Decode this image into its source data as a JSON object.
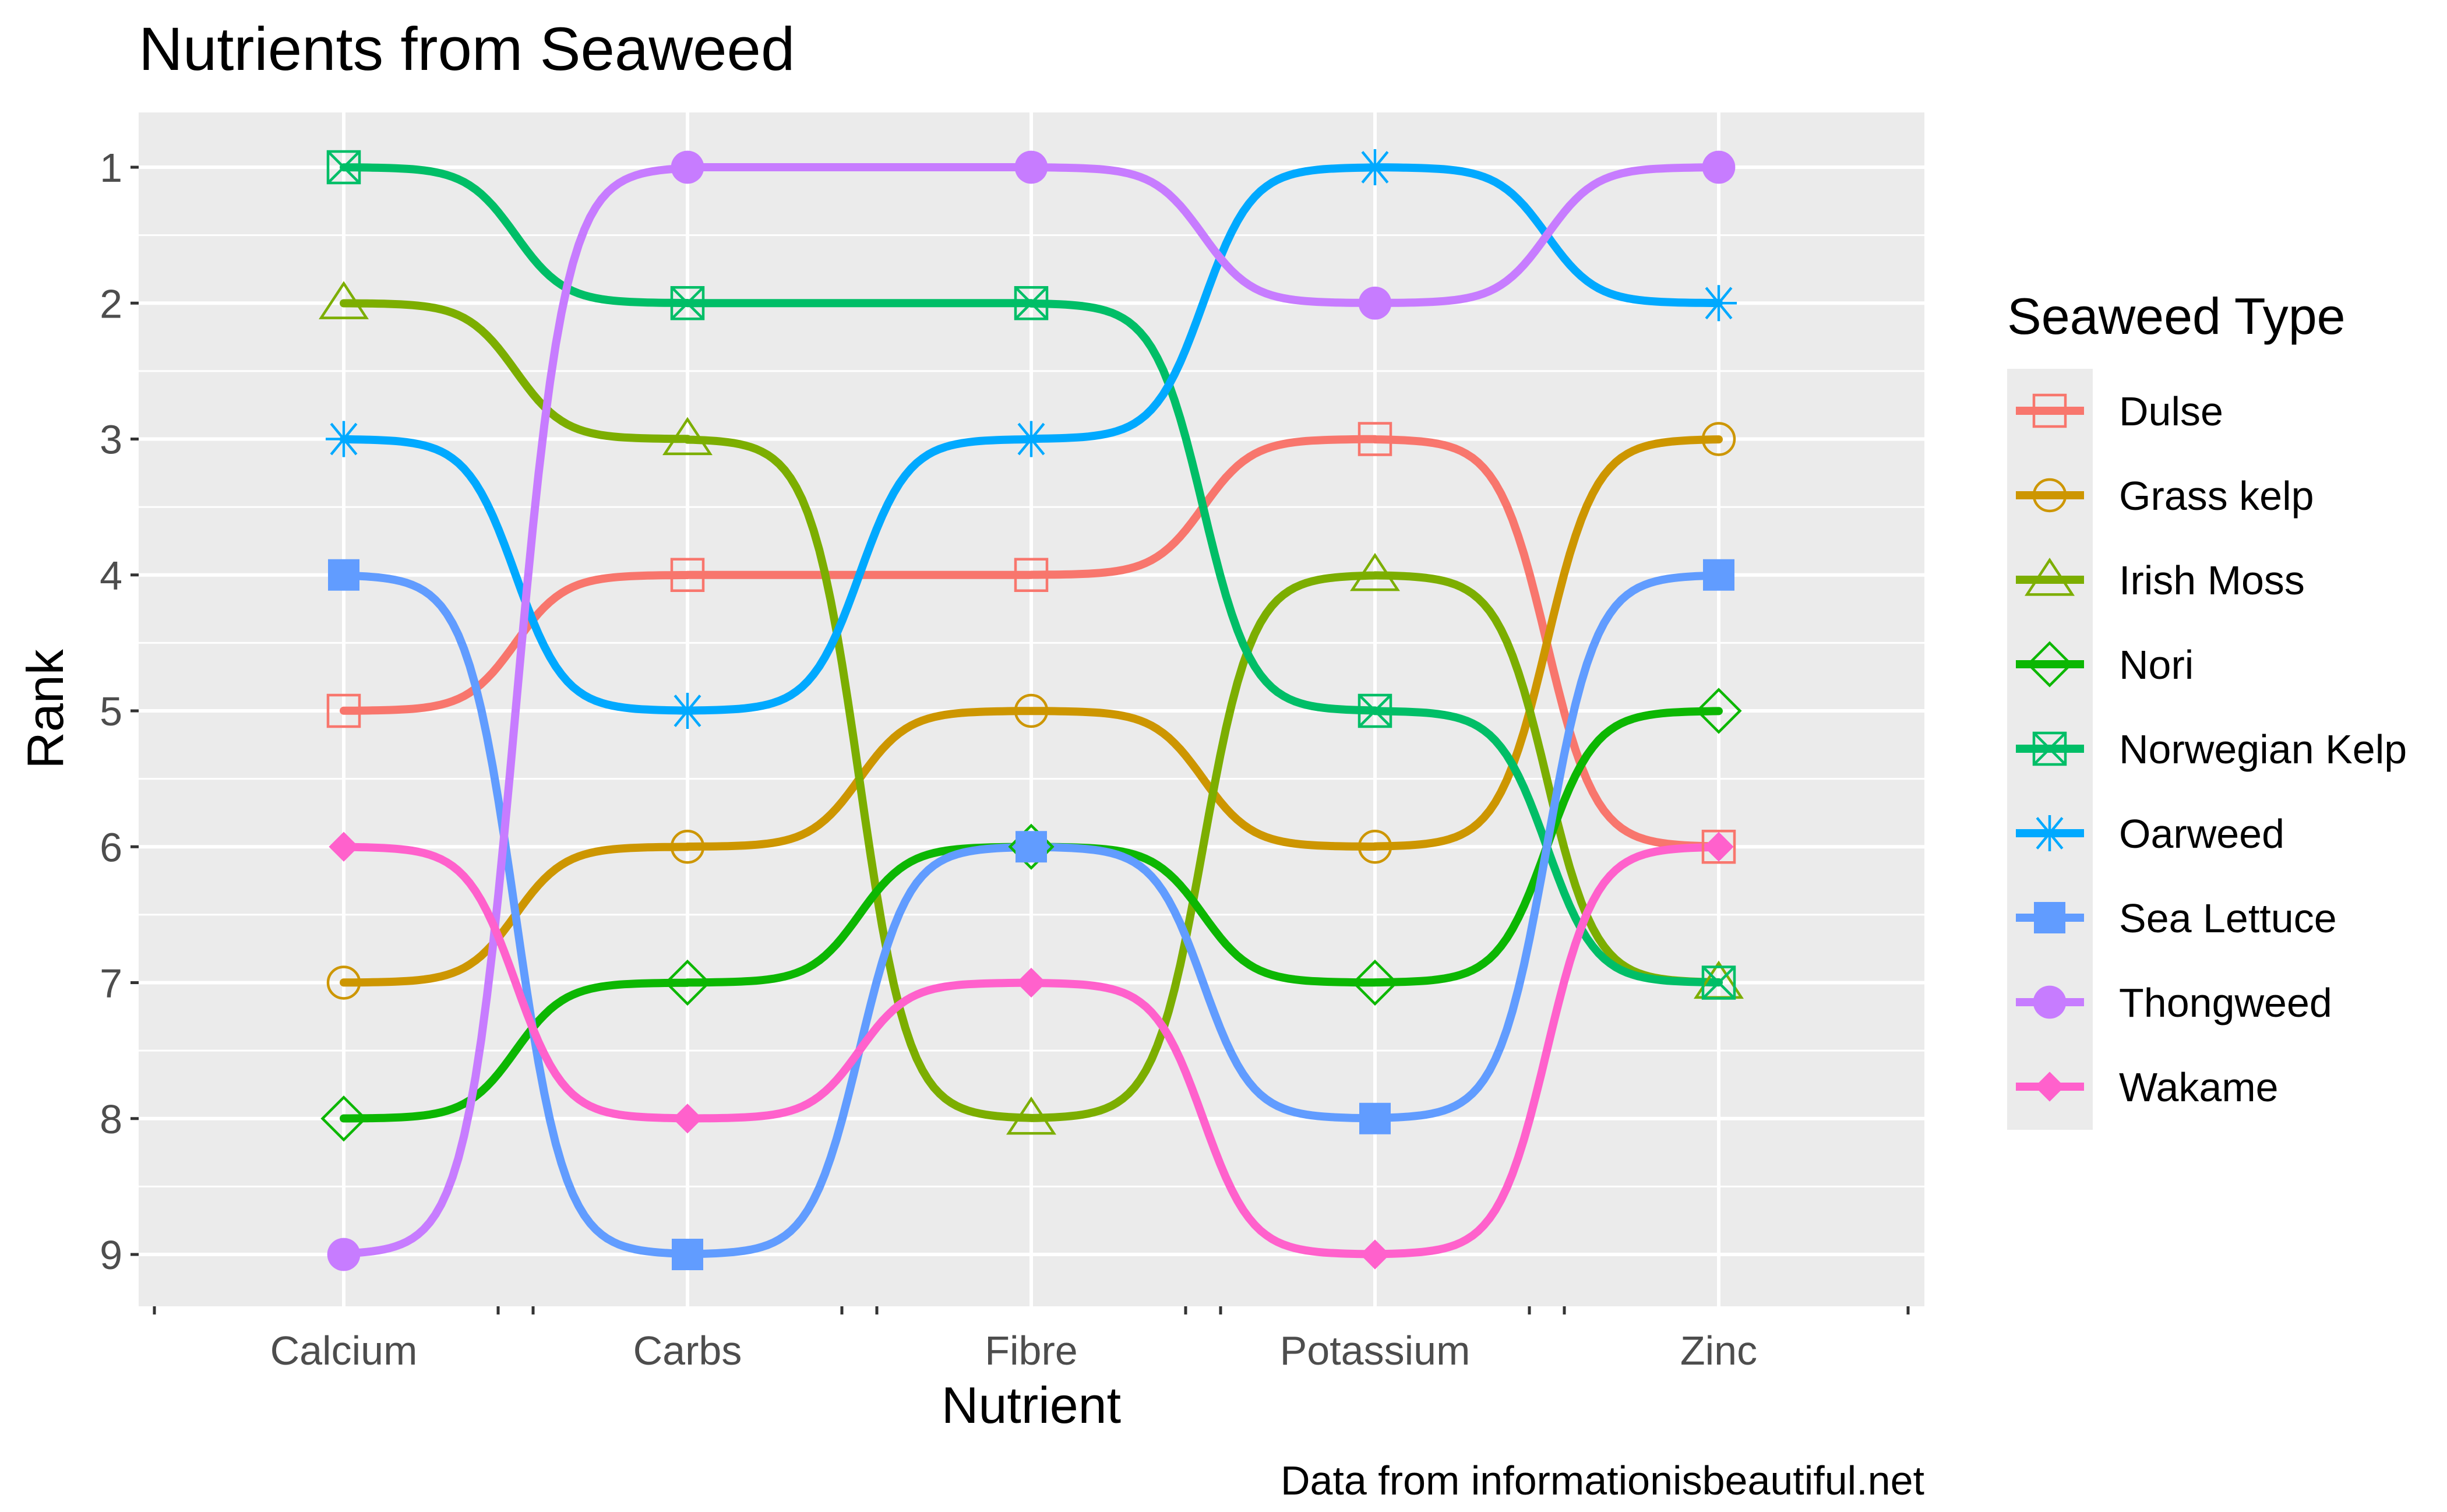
{
  "chart_data": {
    "type": "line",
    "title": "Nutrients from Seaweed",
    "xlabel": "Nutrient",
    "ylabel": "Rank",
    "caption": "Data from informationisbeautiful.net",
    "legend_title": "Seaweed Type",
    "legend_position": "right",
    "categories": [
      "Calcium",
      "Carbs",
      "Fibre",
      "Potassium",
      "Zinc"
    ],
    "y_ticks": [
      "1",
      "2",
      "3",
      "4",
      "5",
      "6",
      "7",
      "8",
      "9"
    ],
    "ylim": [
      9,
      1
    ],
    "y_reversed": true,
    "grid": true,
    "series": [
      {
        "name": "Dulse",
        "color": "#F8766D",
        "marker": "square-open",
        "values": [
          5,
          4,
          4,
          3,
          6
        ]
      },
      {
        "name": "Grass kelp",
        "color": "#CD9600",
        "marker": "circle-open",
        "values": [
          7,
          6,
          5,
          6,
          3
        ]
      },
      {
        "name": "Irish Moss",
        "color": "#7CAE00",
        "marker": "triangle-open",
        "values": [
          2,
          3,
          8,
          4,
          7
        ]
      },
      {
        "name": "Nori",
        "color": "#0CB702",
        "marker": "diamond-open",
        "values": [
          8,
          7,
          6,
          7,
          5
        ]
      },
      {
        "name": "Norwegian Kelp",
        "color": "#00BE67",
        "marker": "square-cross",
        "values": [
          1,
          2,
          2,
          5,
          7
        ]
      },
      {
        "name": "Oarweed",
        "color": "#00A9FF",
        "marker": "asterisk",
        "values": [
          3,
          5,
          3,
          1,
          2
        ]
      },
      {
        "name": "Sea Lettuce",
        "color": "#619CFF",
        "marker": "square-filled",
        "values": [
          4,
          9,
          6,
          8,
          4
        ]
      },
      {
        "name": "Thongweed",
        "color": "#C77CFF",
        "marker": "circle-filled",
        "values": [
          9,
          1,
          1,
          2,
          1
        ]
      },
      {
        "name": "Wakame",
        "color": "#FF61CC",
        "marker": "diamond-filled",
        "values": [
          6,
          8,
          7,
          9,
          6
        ]
      }
    ]
  }
}
